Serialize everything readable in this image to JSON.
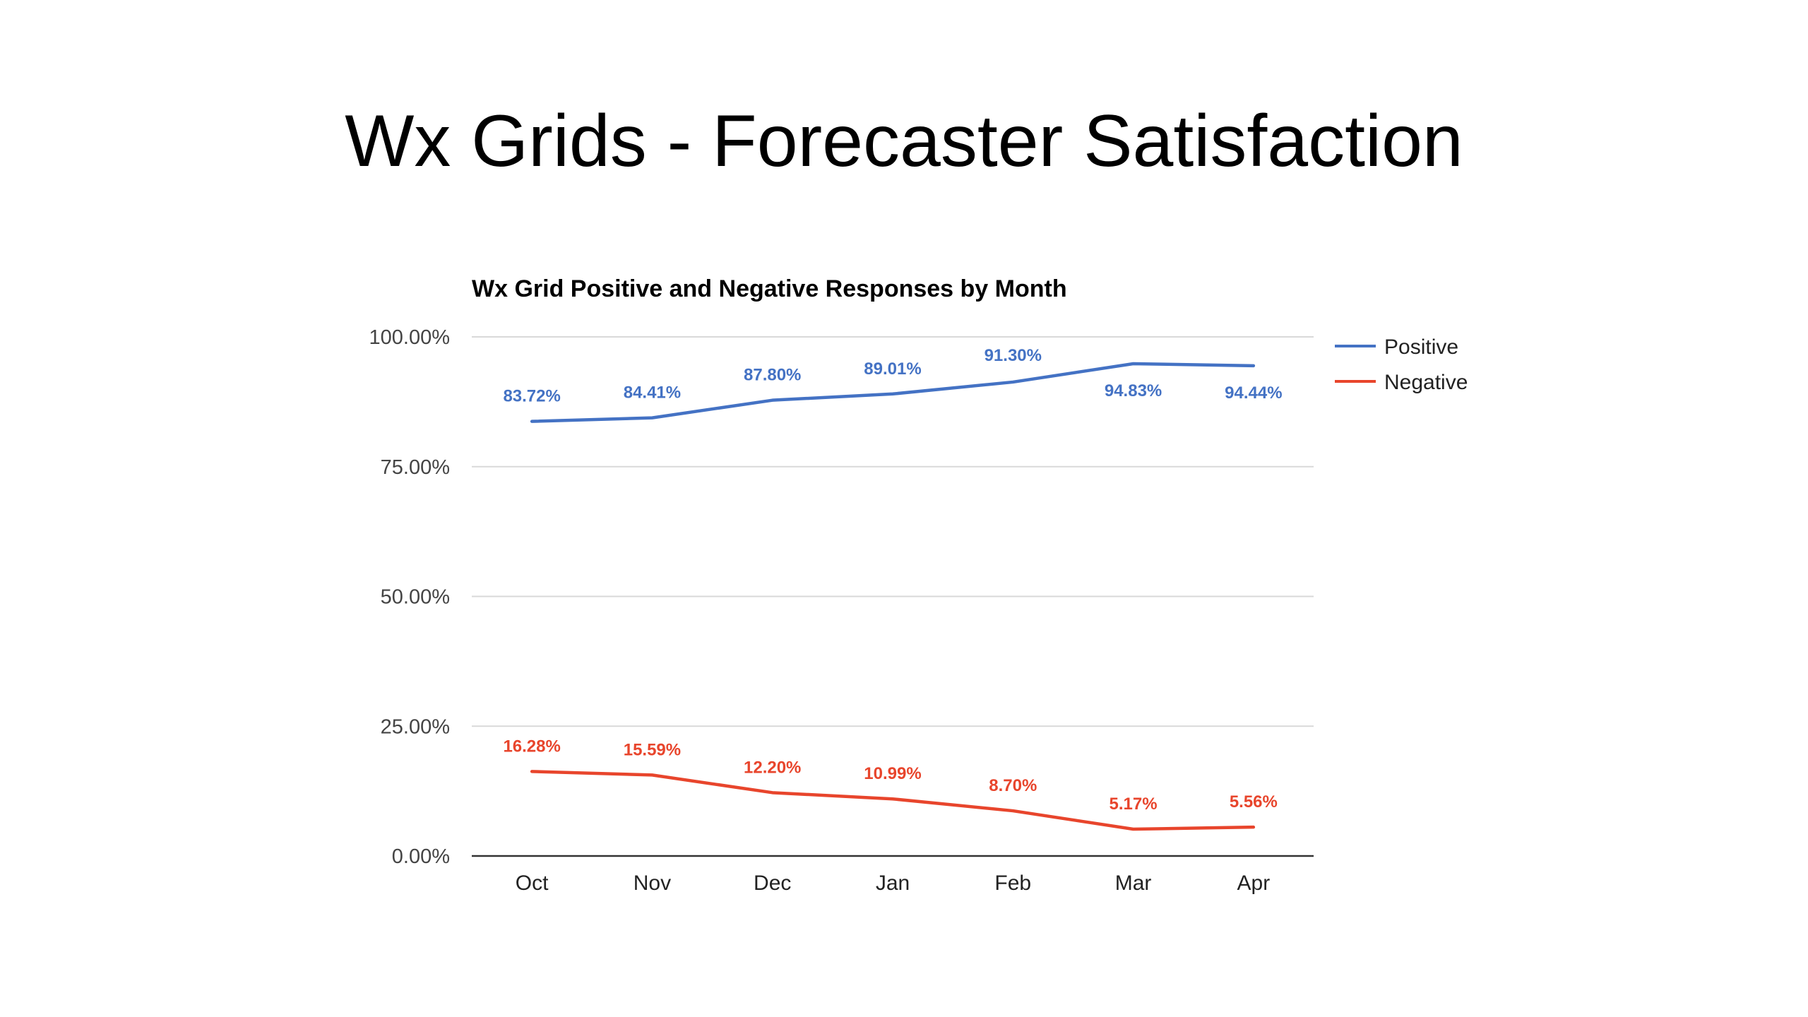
{
  "slide": {
    "title": "Wx Grids - Forecaster Satisfaction"
  },
  "chart_data": {
    "type": "line",
    "title": "Wx Grid Positive and Negative Responses by Month",
    "categories": [
      "Oct",
      "Nov",
      "Dec",
      "Jan",
      "Feb",
      "Mar",
      "Apr"
    ],
    "series": [
      {
        "name": "Positive",
        "color": "#4472C4",
        "values": [
          83.72,
          84.41,
          87.8,
          89.01,
          91.3,
          94.83,
          94.44
        ],
        "labels": [
          "83.72%",
          "84.41%",
          "87.80%",
          "89.01%",
          "91.30%",
          "94.83%",
          "94.44%"
        ]
      },
      {
        "name": "Negative",
        "color": "#E8452C",
        "values": [
          16.28,
          15.59,
          12.2,
          10.99,
          8.7,
          5.17,
          5.56
        ],
        "labels": [
          "16.28%",
          "15.59%",
          "12.20%",
          "10.99%",
          "8.70%",
          "5.17%",
          "5.56%"
        ]
      }
    ],
    "ylim": [
      0,
      100
    ],
    "yticks": [
      0,
      25,
      50,
      75,
      100
    ],
    "ytick_labels": [
      "0.00%",
      "25.00%",
      "50.00%",
      "75.00%",
      "100.00%"
    ],
    "xlabel": "",
    "ylabel": "",
    "grid": true,
    "legend": "right"
  }
}
